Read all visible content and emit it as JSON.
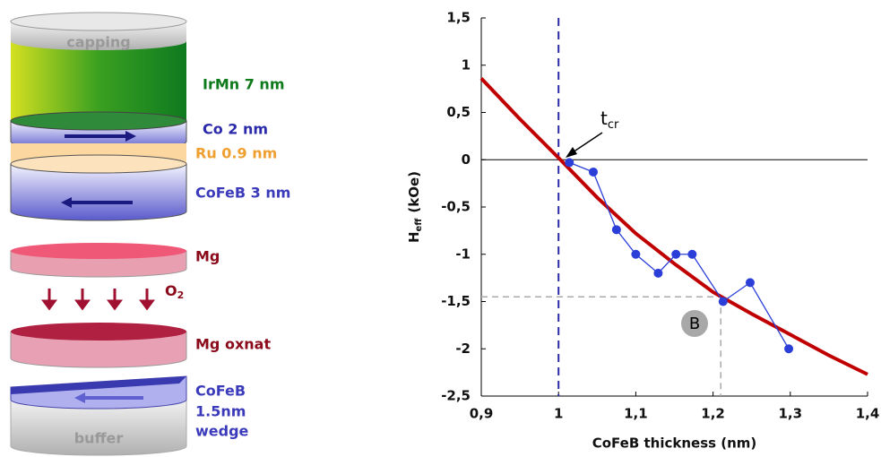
{
  "diagram": {
    "capping": "capping",
    "irmn": "IrMn 7 nm",
    "co": "Co 2 nm",
    "ru": "Ru 0.9 nm",
    "cofeb_top": "CoFeB 3 nm",
    "mg": "Mg",
    "oxygen": {
      "symbol": "O",
      "sub": "2"
    },
    "mg_oxnat": "Mg oxnat",
    "cofeb_bottom": [
      "CoFeB",
      "1.5nm",
      "wedge"
    ],
    "buffer": "buffer"
  },
  "chart_data": {
    "type": "line",
    "xlabel": "CoFeB thickness (nm)",
    "ylabel": {
      "main": "H",
      "sub": "eff",
      "unit": "(kOe)"
    },
    "annotations": {
      "tcr": {
        "main": "t",
        "sub": "cr"
      },
      "point": "B"
    },
    "xlim": [
      0.9,
      1.4
    ],
    "xticks": [
      {
        "value": 0.9,
        "label": "0,9"
      },
      1,
      {
        "value": 1.1,
        "label": "1,1"
      },
      {
        "value": 1.2,
        "label": "1,2"
      },
      {
        "value": 1.3,
        "label": "1,3"
      },
      {
        "value": 1.4,
        "label": "1,4"
      }
    ],
    "ylim": [
      -2.5,
      1.5
    ],
    "yticks": [
      {
        "value": -2.5,
        "label": "-2,5"
      },
      -2,
      {
        "value": -1.5,
        "label": "-1,5"
      },
      -1,
      {
        "value": -0.5,
        "label": "-0,5"
      },
      0,
      {
        "value": 0.5,
        "label": "0,5"
      },
      1,
      {
        "value": 1.5,
        "label": "1,5"
      }
    ],
    "vline": {
      "x": 1.0,
      "color": "#2a2aaa"
    },
    "guide": {
      "x": 1.21,
      "y": -1.45,
      "color": "#aaaaaa"
    },
    "series": [
      {
        "color": "#c00000",
        "markers": false,
        "x": [
          0.9,
          0.95,
          1.0,
          1.05,
          1.1,
          1.15,
          1.2,
          1.25,
          1.3,
          1.35,
          1.4
        ],
        "values": [
          0.86,
          0.43,
          0.02,
          -0.4,
          -0.78,
          -1.1,
          -1.4,
          -1.63,
          -1.85,
          -2.07,
          -2.27
        ]
      },
      {
        "color": "#2b3fd8",
        "markers": true,
        "x": [
          1.014,
          1.045,
          1.075,
          1.1,
          1.129,
          1.152,
          1.173,
          1.213,
          1.248,
          1.298
        ],
        "values": [
          -0.03,
          -0.13,
          -0.74,
          -1.0,
          -1.2,
          -1.0,
          -1.0,
          -1.5,
          -1.3,
          -2.0
        ]
      }
    ]
  }
}
